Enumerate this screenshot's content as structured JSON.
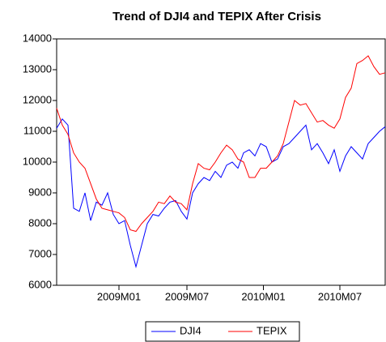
{
  "chart_data": {
    "type": "line",
    "title": "Trend of DJI4 and TEPIX After Crisis",
    "x": [
      0,
      2,
      4,
      6,
      8,
      10,
      12,
      14,
      16,
      18,
      20,
      22,
      24,
      26,
      28,
      30,
      32,
      34,
      36,
      38,
      40,
      42,
      44,
      46,
      48,
      50,
      52,
      54,
      56,
      58,
      60,
      62,
      64,
      66,
      68,
      70,
      72,
      74,
      76,
      78,
      80,
      82,
      84,
      86,
      88,
      90,
      92,
      94,
      96,
      98,
      100,
      102,
      104,
      106,
      108,
      110,
      112,
      114,
      116
    ],
    "xlim": [
      0,
      116
    ],
    "xticks": [
      {
        "value": 22,
        "label": "2009M01"
      },
      {
        "value": 46,
        "label": "2009M07"
      },
      {
        "value": 73,
        "label": "2010M01"
      },
      {
        "value": 100,
        "label": "2010M07"
      }
    ],
    "ylim": [
      6000,
      14000
    ],
    "yticks": [
      6000,
      7000,
      8000,
      9000,
      10000,
      11000,
      12000,
      13000,
      14000
    ],
    "legend": "bottom",
    "series": [
      {
        "name": "DJI4",
        "color": "#0000ff",
        "values": [
          11100,
          11400,
          11200,
          8500,
          8400,
          9000,
          8100,
          8700,
          8600,
          9000,
          8300,
          8000,
          8100,
          7300,
          6600,
          7300,
          8000,
          8300,
          8250,
          8500,
          8700,
          8750,
          8400,
          8150,
          9000,
          9300,
          9500,
          9400,
          9700,
          9500,
          9900,
          10000,
          9800,
          10300,
          10400,
          10200,
          10600,
          10500,
          10000,
          10100,
          10500,
          10600,
          10800,
          11000,
          11200,
          10400,
          10600,
          10300,
          9950,
          10400,
          9700,
          10200,
          10500,
          10300,
          10100,
          10600,
          10800,
          11000,
          11150
        ]
      },
      {
        "name": "TEPIX",
        "color": "#ff0000",
        "values": [
          11750,
          11200,
          10900,
          10300,
          10000,
          9800,
          9300,
          8800,
          8500,
          8450,
          8400,
          8350,
          8200,
          7800,
          7750,
          8000,
          8200,
          8400,
          8700,
          8650,
          8900,
          8700,
          8650,
          8450,
          9300,
          9950,
          9800,
          9750,
          10000,
          10300,
          10550,
          10400,
          10100,
          10000,
          9500,
          9500,
          9800,
          9800,
          10000,
          10200,
          10600,
          11300,
          12000,
          11850,
          11900,
          11600,
          11300,
          11350,
          11200,
          11100,
          11400,
          12100,
          12400,
          13200,
          13300,
          13450,
          13100,
          12850,
          12900
        ]
      }
    ]
  }
}
